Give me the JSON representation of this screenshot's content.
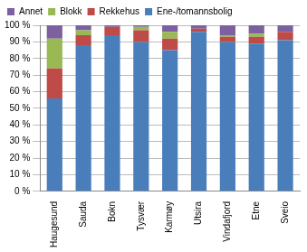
{
  "chart_data": {
    "type": "bar",
    "stacked": true,
    "grid": true,
    "legend": "top",
    "categories": [
      "Haugesund",
      "Sauda",
      "Bokn",
      "Tysvær",
      "Karmøy",
      "Utsira",
      "Vindafjord",
      "Etne",
      "Sveio"
    ],
    "series": [
      {
        "name": "Ene-/tomannsbolig",
        "color": "#4a7ebb",
        "values": [
          56,
          88,
          94,
          90,
          85,
          96,
          90,
          89,
          91
        ]
      },
      {
        "name": "Rekkehus",
        "color": "#be4b48",
        "values": [
          18,
          6,
          5,
          7,
          7,
          2,
          3,
          4,
          5
        ]
      },
      {
        "name": "Blokk",
        "color": "#98b954",
        "values": [
          18,
          3,
          0,
          2,
          4,
          0,
          1,
          2,
          0
        ]
      },
      {
        "name": "Annet",
        "color": "#7d60a0",
        "values": [
          8,
          3,
          1,
          1,
          4,
          2,
          6,
          5,
          4
        ]
      }
    ],
    "ylim": [
      0,
      100
    ],
    "yticks": [
      {
        "value": 0,
        "label": "0 %"
      },
      {
        "value": 10,
        "label": "10 %"
      },
      {
        "value": 20,
        "label": "20 %"
      },
      {
        "value": 30,
        "label": "30 %"
      },
      {
        "value": 40,
        "label": "40 %"
      },
      {
        "value": 50,
        "label": "50 %"
      },
      {
        "value": 60,
        "label": "60 %"
      },
      {
        "value": 70,
        "label": "70 %"
      },
      {
        "value": 80,
        "label": "80 %"
      },
      {
        "value": 90,
        "label": "90 %"
      },
      {
        "value": 100,
        "label": "100 %"
      }
    ]
  }
}
